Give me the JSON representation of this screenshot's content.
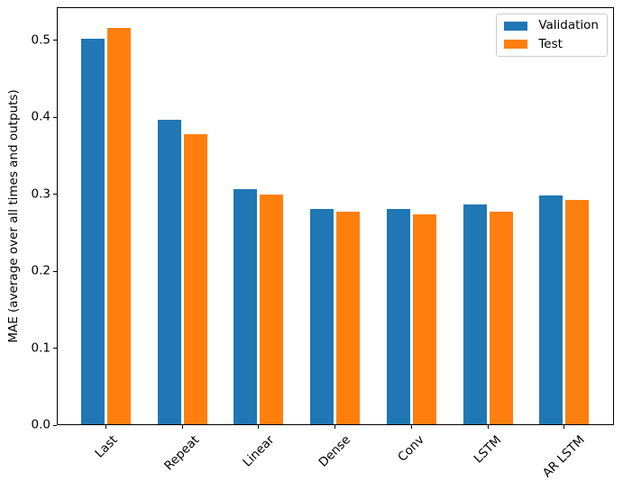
{
  "figure": {
    "background": "#ffffff"
  },
  "axes": {
    "spine_color": "#000000",
    "tick_color": "#000000",
    "text_color": "#000000"
  },
  "chart_data": {
    "type": "bar",
    "categories": [
      "Last",
      "Repeat",
      "Linear",
      "Dense",
      "Conv",
      "LSTM",
      "AR LSTM"
    ],
    "series": [
      {
        "name": "Validation",
        "color": "#1f77b4",
        "values": [
          0.501,
          0.396,
          0.306,
          0.28,
          0.28,
          0.286,
          0.297
        ]
      },
      {
        "name": "Test",
        "color": "#ff7f0e",
        "values": [
          0.515,
          0.377,
          0.298,
          0.276,
          0.273,
          0.276,
          0.291
        ]
      }
    ],
    "title": "",
    "xlabel": "",
    "ylabel": "MAE (average over all times and outputs)",
    "ylim": [
      0,
      0.543
    ],
    "yticks": [
      {
        "value": 0.0,
        "label": "0.0"
      },
      {
        "value": 0.1,
        "label": "0.1"
      },
      {
        "value": 0.2,
        "label": "0.2"
      },
      {
        "value": 0.3,
        "label": "0.3"
      },
      {
        "value": 0.4,
        "label": "0.4"
      },
      {
        "value": 0.5,
        "label": "0.5"
      }
    ],
    "grid": false,
    "legend_position": "upper right",
    "xtick_rotation": 45
  }
}
